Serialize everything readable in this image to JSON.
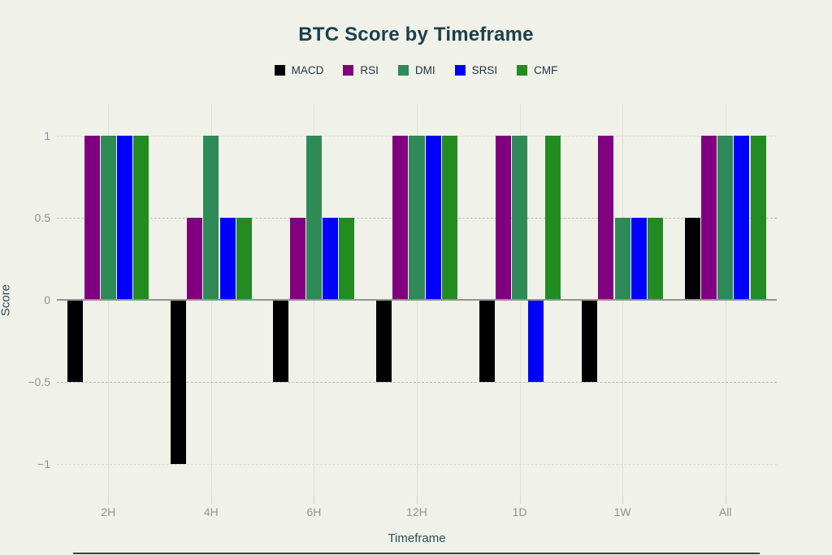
{
  "page": {
    "background_color": "#F0F1E9",
    "title_color": "#1C3F4A",
    "tick_label_color": "#8E9398",
    "axis_title_color": "#2B4D57"
  },
  "chart_data": {
    "type": "bar",
    "title": "BTC Score by Timeframe",
    "xlabel": "Timeframe",
    "ylabel": "Score",
    "categories": [
      "2H",
      "4H",
      "6H",
      "12H",
      "1D",
      "1W",
      "All"
    ],
    "series": [
      {
        "name": "MACD",
        "color": "#000000",
        "values": [
          -0.5,
          -1,
          -0.5,
          -0.5,
          -0.5,
          -0.5,
          0.5
        ]
      },
      {
        "name": "RSI",
        "color": "#800080",
        "values": [
          1,
          0.5,
          0.5,
          1,
          1,
          1,
          1
        ]
      },
      {
        "name": "DMI",
        "color": "#2E8B57",
        "values": [
          1,
          1,
          1,
          1,
          1,
          0.5,
          1
        ]
      },
      {
        "name": "SRSI",
        "color": "#0000FF",
        "values": [
          1,
          0.5,
          0.5,
          1,
          -0.5,
          0.5,
          1
        ]
      },
      {
        "name": "CMF",
        "color": "#228B22",
        "values": [
          1,
          0.5,
          0.5,
          1,
          1,
          0.5,
          1
        ]
      }
    ],
    "yticks": [
      1,
      0.5,
      0,
      -0.5,
      -1
    ],
    "ylim": [
      -1.2,
      1.2
    ],
    "grid": true,
    "legend_position": "top-center"
  }
}
